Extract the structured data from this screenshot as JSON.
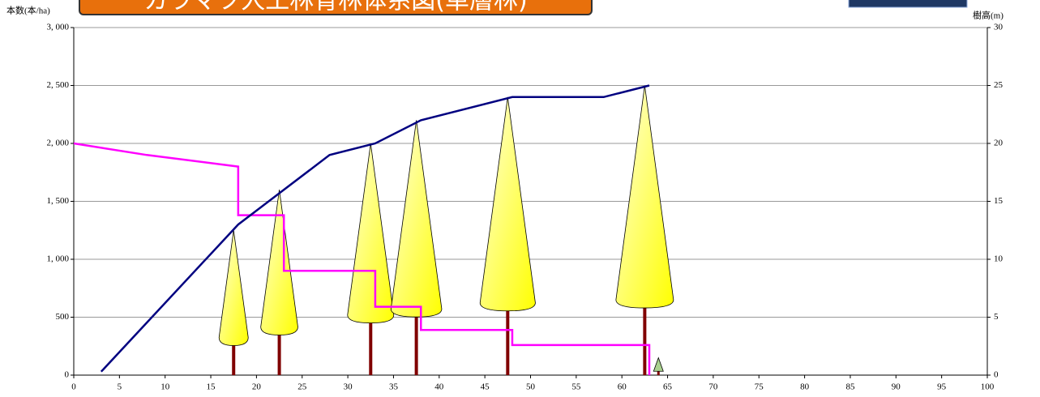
{
  "chart_data": {
    "type": "line",
    "title": "カラマツ人工林育林体系図(単層林)",
    "y_label": "本数(本/ha)",
    "y2_label": "樹高(m)",
    "xlim": [
      0,
      100
    ],
    "xticks": [
      0,
      5,
      10,
      15,
      20,
      25,
      30,
      35,
      40,
      45,
      50,
      55,
      60,
      65,
      70,
      75,
      80,
      85,
      90,
      95,
      100
    ],
    "ylim": [
      0,
      3000
    ],
    "yticks": [
      0,
      500,
      {
        "value": 1000,
        "label": "1, 000"
      },
      {
        "value": 1500,
        "label": "1, 500"
      },
      {
        "value": 2000,
        "label": "2, 000"
      },
      {
        "value": 2500,
        "label": "2, 500"
      },
      {
        "value": 3000,
        "label": "3, 000"
      }
    ],
    "y2lim": [
      0,
      30
    ],
    "y2ticks": [
      0,
      5,
      10,
      15,
      20,
      25,
      30
    ],
    "grid": true,
    "series": [
      {
        "color": "#ff00ff",
        "step": true,
        "x": [
          0,
          8,
          18,
          18,
          23,
          23,
          33,
          33,
          38,
          38,
          48,
          48,
          63,
          63
        ],
        "values": [
          2000,
          1900,
          1800,
          1380,
          1380,
          900,
          900,
          590,
          590,
          390,
          390,
          260,
          260,
          0
        ]
      },
      {
        "color": "#000080",
        "axis": "y2",
        "x": [
          3,
          18,
          28,
          33,
          38,
          48,
          58,
          63
        ],
        "values": [
          0.3,
          13,
          19,
          20,
          22,
          24,
          24,
          25
        ]
      }
    ],
    "trees": {
      "x": [
        17.5,
        22.5,
        32.5,
        37.5,
        47.5,
        62.5,
        64
      ],
      "values": [
        12.5,
        16,
        20,
        22,
        24,
        25,
        1.5
      ]
    }
  }
}
